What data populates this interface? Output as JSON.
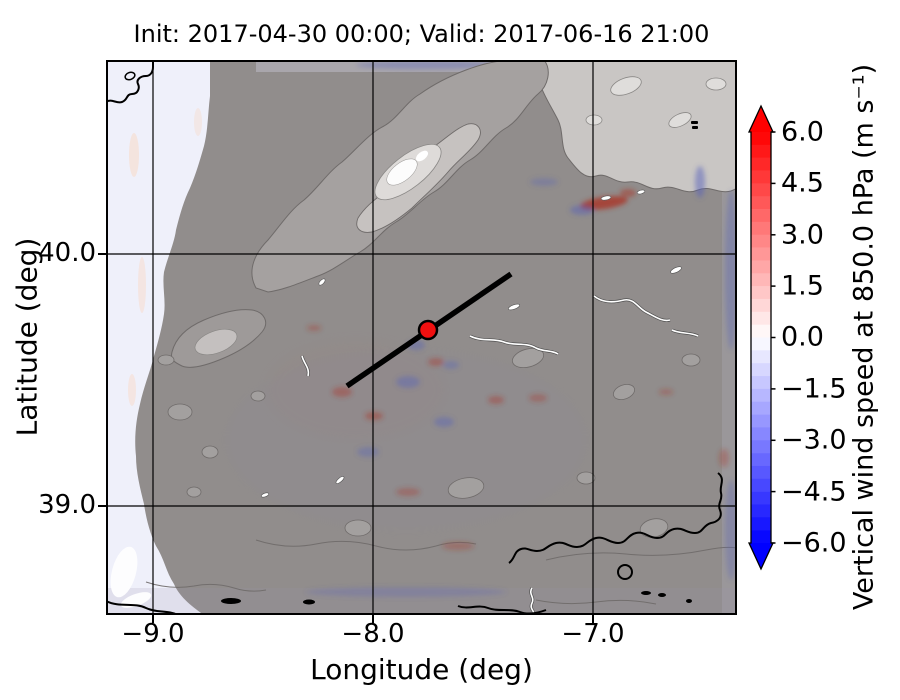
{
  "figure": {
    "title": "Init: 2017-04-30 00:00; Valid: 2017-06-16 21:00"
  },
  "axes": {
    "xlabel": "Longitude (deg)",
    "ylabel": "Latitude (deg)",
    "xticks": [
      "−9.0",
      "−8.0",
      "−7.0"
    ],
    "yticks": [
      "40.0",
      "39.0"
    ]
  },
  "colorbar": {
    "label": "Vertical wind speed at 850.0 hPa (m s⁻¹)",
    "ticks": [
      "6.0",
      "4.5",
      "3.0",
      "1.5",
      "0.0",
      "−1.5",
      "−3.0",
      "−4.5",
      "−6.0"
    ],
    "vmin": -6.0,
    "vmax": 6.0,
    "step": 0.375,
    "cmap": "bwr (blue-white-red)",
    "over_color": "#ff0000",
    "under_color": "#0000ff",
    "extend": "both"
  },
  "map": {
    "land_gray": "#918d8c",
    "ocean_tint": "#eff0fa",
    "marker_color": "#f01010",
    "cross_section_color": "#000000"
  },
  "chart_data": {
    "type": "heatmap",
    "title": "Init: 2017-04-30 00:00; Valid: 2017-06-16 21:00",
    "xlabel": "Longitude (deg)",
    "ylabel": "Latitude (deg)",
    "xlim": [
      -9.22,
      -6.35
    ],
    "ylim": [
      38.57,
      40.77
    ],
    "xticks": [
      -9.0,
      -8.0,
      -7.0
    ],
    "yticks": [
      40.0,
      39.0
    ],
    "grid": true,
    "field": "Vertical wind speed at 850.0 hPa",
    "units": "m s⁻¹",
    "field_summary": "Field is predominantly near 0 m s⁻¹ (white/gray); weak mottled patches of roughly ±1.5 m s⁻¹ over mountain ridges; strongest red streak near lon −7.3, lat 40.2; figure overlaid with grayscale terrain shading and elevation contours (white peak = Serra da Estrela near lon −7.6, lat 40.35); black coastline contours at the NW corner and along the SE (Tagus) region",
    "colorbar": {
      "cmap": "bwr (blue-white-red)",
      "vmin": -6.0,
      "vmax": 6.0,
      "tick_values": [
        6.0,
        4.5,
        3.0,
        1.5,
        0.0,
        -1.5,
        -3.0,
        -4.5,
        -6.0
      ],
      "band_step": 0.375,
      "extend": "both"
    },
    "overlays": {
      "marker": {
        "type": "point",
        "lon": -7.75,
        "lat": 39.7,
        "color": "#f01010",
        "edge_color": "#000000"
      },
      "cross_section_line": {
        "from": {
          "lon": -8.12,
          "lat": 39.48
        },
        "to": {
          "lon": -7.37,
          "lat": 39.92
        },
        "color": "#000000"
      }
    }
  }
}
